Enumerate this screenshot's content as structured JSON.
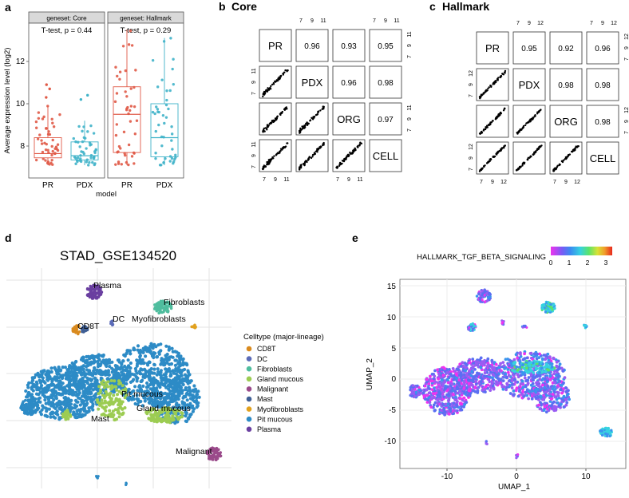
{
  "panels": {
    "a": {
      "letter": "a",
      "facets": [
        "geneset: Core",
        "geneset: Hallmark"
      ],
      "stats": [
        "T-test, p = 0.44",
        "T-test, p = 0.29"
      ],
      "xlabel": "model",
      "ylabel": "Average expression level (log2)",
      "yticks": [
        "8",
        "10",
        "12"
      ],
      "xcats": [
        "PR",
        "PDX"
      ]
    },
    "b": {
      "letter": "b",
      "title": "Core",
      "labels": [
        "PR",
        "PDX",
        "ORG",
        "CELL"
      ],
      "correlations": [
        [
          "0.96",
          "0.93",
          "0.95"
        ],
        [
          "0.96",
          "0.98"
        ],
        [
          "0.97"
        ]
      ],
      "ticks": [
        "7",
        "9",
        "11"
      ]
    },
    "c": {
      "letter": "c",
      "title": "Hallmark",
      "labels": [
        "PR",
        "PDX",
        "ORG",
        "CELL"
      ],
      "correlations": [
        [
          "0.95",
          "0.92",
          "0.96"
        ],
        [
          "0.98",
          "0.98"
        ],
        [
          "0.98"
        ]
      ],
      "ticks": [
        "7",
        "9",
        "12"
      ],
      "ticks_alt": [
        "7",
        "9",
        "11"
      ]
    },
    "d": {
      "letter": "d",
      "title": "STAD_GSE134520",
      "legend_title": "Celltype (major-lineage)",
      "cluster_labels": [
        "Plasma",
        "Fibroblasts",
        "DC",
        "Myofibroblasts",
        "CD8T",
        "Pit mucous",
        "Gland mucous",
        "Mast",
        "Malignant"
      ],
      "legend": [
        {
          "label": "CD8T",
          "color": "#d98a1e"
        },
        {
          "label": "DC",
          "color": "#5b6bb8"
        },
        {
          "label": "Fibroblasts",
          "color": "#4fbd9e"
        },
        {
          "label": "Gland mucous",
          "color": "#9ccc52"
        },
        {
          "label": "Malignant",
          "color": "#9a4a8a"
        },
        {
          "label": "Mast",
          "color": "#3f5f95"
        },
        {
          "label": "Myofibroblasts",
          "color": "#e1a11e"
        },
        {
          "label": "Pit mucous",
          "color": "#2d8bc6"
        },
        {
          "label": "Plasma",
          "color": "#6a3fa0"
        }
      ]
    },
    "e": {
      "letter": "e",
      "colorbar_title": "HALLMARK_TGF_BETA_SIGNALING",
      "colorbar_ticks": [
        "0",
        "1",
        "2",
        "3"
      ],
      "yticks": [
        "15",
        "10",
        "5",
        "0",
        "-5",
        "-10"
      ],
      "xticks": [
        "-10",
        "0",
        "10"
      ],
      "xlabel": "UMAP_1",
      "ylabel": "UMAP_2"
    }
  },
  "chart_data": [
    {
      "type": "box",
      "title": "a",
      "facets": [
        "geneset: Core",
        "geneset: Hallmark"
      ],
      "categories": [
        "PR",
        "PDX"
      ],
      "ylabel": "Average expression level (log2)",
      "xlabel": "model",
      "ylim": [
        6.3,
        13.6
      ],
      "series": [
        {
          "facet": "geneset: Core",
          "name": "PR",
          "color": "#e05a47",
          "q1": 7.25,
          "median": 7.45,
          "q3": 8.2,
          "whisker_low": 6.9,
          "whisker_high": 9.7,
          "outliers": [
            10.1,
            10.5,
            10.7
          ]
        },
        {
          "facet": "geneset: Core",
          "name": "PDX",
          "color": "#3fb3c9",
          "q1": 7.15,
          "median": 7.35,
          "q3": 8.0,
          "whisker_low": 6.9,
          "whisker_high": 9.0,
          "outliers": [
            10.0,
            10.2
          ]
        },
        {
          "facet": "geneset: Hallmark",
          "name": "PR",
          "color": "#e05a47",
          "q1": 7.5,
          "median": 9.3,
          "q3": 10.6,
          "whisker_low": 6.9,
          "whisker_high": 13.3,
          "outliers": []
        },
        {
          "facet": "geneset: Hallmark",
          "name": "PDX",
          "color": "#3fb3c9",
          "q1": 7.3,
          "median": 8.2,
          "q3": 9.8,
          "whisker_low": 6.9,
          "whisker_high": 12.9,
          "outliers": []
        }
      ],
      "annotations": [
        "T-test, p = 0.44",
        "T-test, p = 0.29"
      ]
    },
    {
      "type": "scatter-matrix",
      "title": "b Core",
      "variables": [
        "PR",
        "PDX",
        "ORG",
        "CELL"
      ],
      "axis_range": [
        6.5,
        11.5
      ],
      "upper_correlations": {
        "PR-PDX": 0.96,
        "PR-ORG": 0.93,
        "PR-CELL": 0.95,
        "PDX-ORG": 0.96,
        "PDX-CELL": 0.98,
        "ORG-CELL": 0.97
      }
    },
    {
      "type": "scatter-matrix",
      "title": "c Hallmark",
      "variables": [
        "PR",
        "PDX",
        "ORG",
        "CELL"
      ],
      "axis_range": [
        6.5,
        13
      ],
      "upper_correlations": {
        "PR-PDX": 0.95,
        "PR-ORG": 0.92,
        "PR-CELL": 0.96,
        "PDX-ORG": 0.98,
        "PDX-CELL": 0.98,
        "ORG-CELL": 0.98
      }
    },
    {
      "type": "scatter",
      "title": "STAD_GSE134520",
      "legend_title": "Celltype (major-lineage)",
      "categories": [
        "CD8T",
        "DC",
        "Fibroblasts",
        "Gland mucous",
        "Malignant",
        "Mast",
        "Myofibroblasts",
        "Pit mucous",
        "Plasma"
      ]
    },
    {
      "type": "scatter",
      "title": "HALLMARK_TGF_BETA_SIGNALING",
      "xlabel": "UMAP_1",
      "ylabel": "UMAP_2",
      "xlim": [
        -16,
        15
      ],
      "ylim": [
        -13.5,
        16.5
      ],
      "color_range": [
        0,
        3.3
      ]
    }
  ]
}
